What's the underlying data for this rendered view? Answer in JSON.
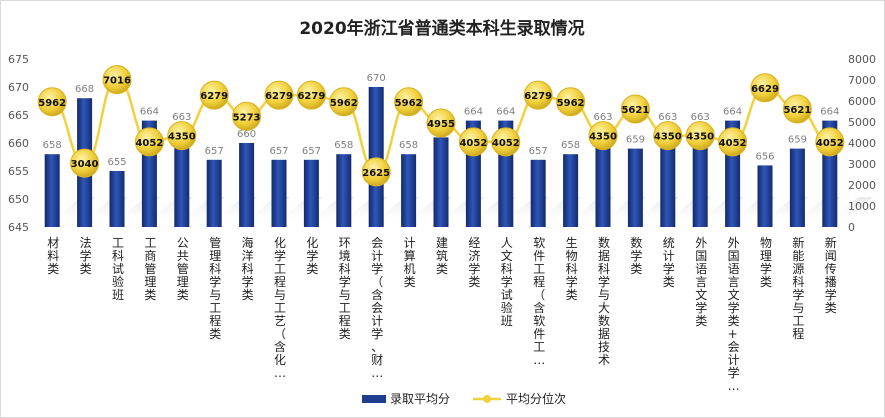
{
  "chart_data": {
    "type": "bar",
    "title": "2020年浙江省普通类本科生录取情况",
    "categories": [
      "材料类",
      "法学类",
      "工科试验班",
      "工商管理类",
      "公共管理类",
      "管理科学与工程类",
      "海洋科学类",
      "化学工程与工艺（含化…",
      "化学类",
      "环境科学与工程类",
      "会计学（含会计学、财…",
      "计算机类",
      "建筑类",
      "经济学类",
      "人文科学试验班",
      "软件工程（含软件工…",
      "生物科学类",
      "数据科学与大数据技术",
      "数学类",
      "统计学类",
      "外国语言文学类",
      "外国语言文学类+会计学…",
      "物理学类",
      "新能源科学与工程",
      "新闻传播学类"
    ],
    "series": [
      {
        "name": "录取平均分",
        "type": "bar",
        "axis": "left",
        "color": "#1f3d8f",
        "values": [
          658,
          668,
          655,
          664,
          663,
          657,
          660,
          657,
          657,
          658,
          670,
          658,
          661,
          664,
          664,
          657,
          658,
          663,
          659,
          663,
          663,
          664,
          656,
          659,
          664
        ]
      },
      {
        "name": "平均分位次",
        "type": "line",
        "axis": "right",
        "color": "#f2d13c",
        "values": [
          5962,
          3040,
          7016,
          4052,
          4350,
          6279,
          5273,
          6279,
          6279,
          5962,
          2625,
          5962,
          4955,
          4052,
          4052,
          6279,
          5962,
          4350,
          5621,
          4350,
          4350,
          4052,
          6629,
          5621,
          4052
        ]
      }
    ],
    "ylim_left": [
      645,
      675
    ],
    "yticks_left": [
      645,
      650,
      655,
      660,
      665,
      670,
      675
    ],
    "ylim_right": [
      0,
      8000
    ],
    "yticks_right": [
      0,
      1000,
      2000,
      3000,
      4000,
      5000,
      6000,
      7000,
      8000
    ],
    "grid": false,
    "legend_position": "bottom-center"
  }
}
